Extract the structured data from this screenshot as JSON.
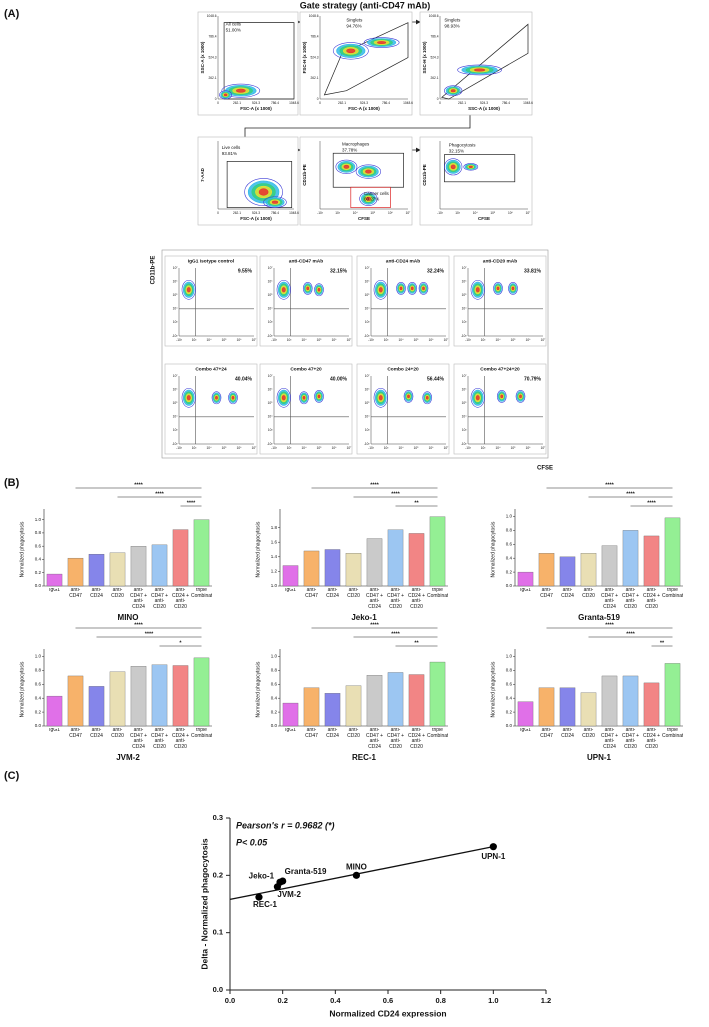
{
  "panel_labels": [
    "(A)",
    "(B)",
    "(C)"
  ],
  "gate_strategy": {
    "title": "Gate strategy (anti-CD47 mAb)",
    "linear_ticks": [
      "0",
      "262.1",
      "524.3",
      "786.4",
      "1048.6"
    ],
    "log_ticks": [
      "-10³",
      "10³",
      "10⁴",
      "10⁵",
      "10⁶",
      "10⁷"
    ],
    "plots": [
      {
        "xlabel": "FSC-A (x 1000)",
        "ylabel": "SSC-A (x 1000)",
        "gate": "All cells",
        "percent": "51.00%"
      },
      {
        "xlabel": "FSC-A (x 1000)",
        "ylabel": "FSC-H (x 1000)",
        "gate": "Singlets",
        "percent": "94.76%"
      },
      {
        "xlabel": "SSC-A (x 1000)",
        "ylabel": "SSC-H (x 1000)",
        "gate": "Singlets",
        "percent": "98.93%"
      },
      {
        "xlabel": "FSC-A (x 1000)",
        "ylabel": "7-AAD",
        "gate": "Live cells",
        "percent": "93.81%"
      },
      {
        "xlabel": "CFSE",
        "ylabel": "CD11b-PE",
        "gate": "Macrophages",
        "percent": "37.78%",
        "gate2": "Cancer cells",
        "percent2": "60.27%"
      },
      {
        "xlabel": "CFSE",
        "ylabel": "CD11b-PE",
        "gate": "Phagocytosis",
        "percent": "32.15%"
      }
    ]
  },
  "flow_grid": {
    "ylabel": "CD11b-PE",
    "xlabel": "CFSE",
    "plots": [
      {
        "title": "IgG1 isotype control",
        "percent": "9.55%"
      },
      {
        "title": "anti-CD47 mAb",
        "percent": "32.15%"
      },
      {
        "title": "anti-CD24 mAb",
        "percent": "32.24%"
      },
      {
        "title": "anti-CD20 mAb",
        "percent": "33.81%"
      },
      {
        "title": "Combo 47+24",
        "percent": "40.04%"
      },
      {
        "title": "Combo 47+20",
        "percent": "40.00%"
      },
      {
        "title": "Combo 24+20",
        "percent": "56.44%"
      },
      {
        "title": "Combo 47+24+20",
        "percent": "70.79%"
      }
    ]
  },
  "chart_data": [
    {
      "type": "bar",
      "title": "MINO",
      "ylabel": "Normalized phagocytosis",
      "categories": [
        "IgG1",
        "anti-CD47",
        "anti-CD24",
        "anti-CD20",
        "anti-CD47 + anti-CD24",
        "anti-CD47 + anti-CD20",
        "anti-CD24 + anti-CD20",
        "triple Combination"
      ],
      "colors": [
        "#e070e8",
        "#f7b26a",
        "#8585ea",
        "#e9dfb4",
        "#cacaca",
        "#9cc6f2",
        "#f28585",
        "#94ef94"
      ],
      "values": [
        0.18,
        0.42,
        0.48,
        0.5,
        0.6,
        0.62,
        0.85,
        1.0
      ],
      "ylim": [
        0,
        1.1
      ],
      "yticks": [
        {
          "value": 0,
          "label": "0.0"
        },
        {
          "value": 0.2,
          "label": "0.2"
        },
        {
          "value": 0.4,
          "label": "0.4"
        },
        {
          "value": 0.6,
          "label": "0.6"
        },
        {
          "value": 0.8,
          "label": "0.8"
        },
        {
          "value": 1,
          "label": "1.0"
        }
      ],
      "significance": [
        {
          "from": "anti-CD47",
          "to": "triple Combination",
          "label": "****"
        },
        {
          "from": "anti-CD20",
          "to": "triple Combination",
          "label": "****"
        },
        {
          "from": "anti-CD24 + anti-CD20",
          "to": "triple Combination",
          "label": "****"
        }
      ]
    },
    {
      "type": "bar",
      "title": "Jeko-1",
      "ylabel": "Normalized phagocytosis",
      "categories": [
        "IgG1",
        "anti-CD47",
        "anti-CD24",
        "anti-CD20",
        "anti-CD47 + anti-CD24",
        "anti-CD47 + anti-CD20",
        "anti-CD24 + anti-CD20",
        "triple Combination"
      ],
      "colors": [
        "#e070e8",
        "#f7b26a",
        "#8585ea",
        "#e9dfb4",
        "#cacaca",
        "#9cc6f2",
        "#f28585",
        "#94ef94"
      ],
      "values": [
        1.28,
        1.48,
        1.5,
        1.45,
        1.65,
        1.77,
        1.72,
        1.95
      ],
      "ylim": [
        1.0,
        2.0
      ],
      "yticks": [
        {
          "value": 1,
          "label": "1.0"
        },
        {
          "value": 1.2,
          "label": "1.2"
        },
        {
          "value": 1.4,
          "label": "1.4"
        },
        {
          "value": 1.6,
          "label": "1.6"
        },
        {
          "value": 1.8,
          "label": "1.8"
        }
      ],
      "significance": [
        {
          "from": "anti-CD47",
          "to": "triple Combination",
          "label": "****"
        },
        {
          "from": "anti-CD20",
          "to": "triple Combination",
          "label": "****"
        },
        {
          "from": "anti-CD47 + anti-CD20",
          "to": "triple Combination",
          "label": "**"
        }
      ]
    },
    {
      "type": "bar",
      "title": "Granta-519",
      "ylabel": "Normalized phagocytosis",
      "categories": [
        "IgG1",
        "anti-CD47",
        "anti-CD24",
        "anti-CD20",
        "anti-CD47 + anti-CD24",
        "anti-CD47 + anti-CD20",
        "anti-CD24 + anti-CD20",
        "triple Combination"
      ],
      "colors": [
        "#e070e8",
        "#f7b26a",
        "#8585ea",
        "#e9dfb4",
        "#cacaca",
        "#9cc6f2",
        "#f28585",
        "#94ef94"
      ],
      "values": [
        0.2,
        0.47,
        0.42,
        0.47,
        0.58,
        0.8,
        0.72,
        0.98
      ],
      "ylim": [
        0,
        1.05
      ],
      "yticks": [
        {
          "value": 0,
          "label": "0.0"
        },
        {
          "value": 0.2,
          "label": "0.2"
        },
        {
          "value": 0.4,
          "label": "0.4"
        },
        {
          "value": 0.6,
          "label": "0.6"
        },
        {
          "value": 0.8,
          "label": "0.8"
        },
        {
          "value": 1,
          "label": "1.0"
        }
      ],
      "significance": [
        {
          "from": "anti-CD47",
          "to": "triple Combination",
          "label": "****"
        },
        {
          "from": "anti-CD20",
          "to": "triple Combination",
          "label": "****"
        },
        {
          "from": "anti-CD47 + anti-CD20",
          "to": "triple Combination",
          "label": "****"
        }
      ]
    },
    {
      "type": "bar",
      "title": "JVM-2",
      "ylabel": "Normalized phagocytosis",
      "categories": [
        "IgG1",
        "anti-CD47",
        "anti-CD24",
        "anti-CD20",
        "anti-CD47 + anti-CD24",
        "anti-CD47 + anti-CD20",
        "anti-CD24 + anti-CD20",
        "triple Combination"
      ],
      "colors": [
        "#e070e8",
        "#f7b26a",
        "#8585ea",
        "#e9dfb4",
        "#cacaca",
        "#9cc6f2",
        "#f28585",
        "#94ef94"
      ],
      "values": [
        0.43,
        0.72,
        0.57,
        0.78,
        0.86,
        0.88,
        0.87,
        0.98
      ],
      "ylim": [
        0,
        1.05
      ],
      "yticks": [
        {
          "value": 0,
          "label": "0.0"
        },
        {
          "value": 0.2,
          "label": "0.2"
        },
        {
          "value": 0.4,
          "label": "0.4"
        },
        {
          "value": 0.6,
          "label": "0.6"
        },
        {
          "value": 0.8,
          "label": "0.8"
        },
        {
          "value": 1,
          "label": "1.0"
        }
      ],
      "significance": [
        {
          "from": "anti-CD47",
          "to": "triple Combination",
          "label": "****"
        },
        {
          "from": "anti-CD24",
          "to": "triple Combination",
          "label": "****"
        },
        {
          "from": "anti-CD47 + anti-CD20",
          "to": "triple Combination",
          "label": "*"
        }
      ]
    },
    {
      "type": "bar",
      "title": "REC-1",
      "ylabel": "Normalized phagocytosis",
      "categories": [
        "IgG1",
        "anti-CD47",
        "anti-CD24",
        "anti-CD20",
        "anti-CD47 + anti-CD24",
        "anti-CD47 + anti-CD20",
        "anti-CD24 + anti-CD20",
        "triple Combination"
      ],
      "colors": [
        "#e070e8",
        "#f7b26a",
        "#8585ea",
        "#e9dfb4",
        "#cacaca",
        "#9cc6f2",
        "#f28585",
        "#94ef94"
      ],
      "values": [
        0.33,
        0.55,
        0.47,
        0.58,
        0.73,
        0.77,
        0.74,
        0.92
      ],
      "ylim": [
        0,
        1.05
      ],
      "yticks": [
        {
          "value": 0,
          "label": "0.0"
        },
        {
          "value": 0.2,
          "label": "0.2"
        },
        {
          "value": 0.4,
          "label": "0.4"
        },
        {
          "value": 0.6,
          "label": "0.6"
        },
        {
          "value": 0.8,
          "label": "0.8"
        },
        {
          "value": 1,
          "label": "1.0"
        }
      ],
      "significance": [
        {
          "from": "anti-CD47",
          "to": "triple Combination",
          "label": "****"
        },
        {
          "from": "anti-CD20",
          "to": "triple Combination",
          "label": "****"
        },
        {
          "from": "anti-CD47 + anti-CD20",
          "to": "triple Combination",
          "label": "**"
        }
      ]
    },
    {
      "type": "bar",
      "title": "UPN-1",
      "ylabel": "Normalized phagocytosis",
      "categories": [
        "IgG1",
        "anti-CD47",
        "anti-CD24",
        "anti-CD20",
        "anti-CD47 + anti-CD24",
        "anti-CD47 + anti-CD20",
        "anti-CD24 + anti-CD20",
        "triple Combination"
      ],
      "colors": [
        "#e070e8",
        "#f7b26a",
        "#8585ea",
        "#e9dfb4",
        "#cacaca",
        "#9cc6f2",
        "#f28585",
        "#94ef94"
      ],
      "values": [
        0.35,
        0.55,
        0.55,
        0.48,
        0.72,
        0.72,
        0.62,
        0.9
      ],
      "ylim": [
        0,
        1.05
      ],
      "yticks": [
        {
          "value": 0,
          "label": "0.0"
        },
        {
          "value": 0.2,
          "label": "0.2"
        },
        {
          "value": 0.4,
          "label": "0.4"
        },
        {
          "value": 0.6,
          "label": "0.6"
        },
        {
          "value": 0.8,
          "label": "0.8"
        },
        {
          "value": 1,
          "label": "1.0"
        }
      ],
      "significance": [
        {
          "from": "anti-CD47",
          "to": "triple Combination",
          "label": "****"
        },
        {
          "from": "anti-CD20",
          "to": "triple Combination",
          "label": "****"
        },
        {
          "from": "anti-CD24 + anti-CD20",
          "to": "triple Combination",
          "label": "**"
        }
      ]
    },
    {
      "type": "scatter",
      "xlabel": "Normalized CD24 expression",
      "ylabel": "Delta - Normalized phagocytosis",
      "annotations": [
        "Pearson's r = 0.9682 (*)",
        "P< 0.05"
      ],
      "labels": [
        "REC-1",
        "JVM-2",
        "Jeko-1",
        "Granta-519",
        "MINO",
        "UPN-1"
      ],
      "x": [
        0.11,
        0.18,
        0.19,
        0.2,
        0.48,
        1.0
      ],
      "y": [
        0.162,
        0.18,
        0.188,
        0.19,
        0.2,
        0.25
      ],
      "color": "#000000",
      "fit": {
        "x": [
          0,
          1
        ],
        "y": [
          0.158,
          0.25
        ]
      },
      "xlim": [
        0,
        1.2
      ],
      "ylim": [
        0,
        0.3
      ],
      "xticks": [
        {
          "value": 0,
          "label": "0.0"
        },
        {
          "value": 0.2,
          "label": "0.2"
        },
        {
          "value": 0.4,
          "label": "0.4"
        },
        {
          "value": 0.6,
          "label": "0.6"
        },
        {
          "value": 0.8,
          "label": "0.8"
        },
        {
          "value": 1,
          "label": "1.0"
        },
        {
          "value": 1.2,
          "label": "1.2"
        }
      ],
      "yticks": [
        {
          "value": 0,
          "label": "0.0"
        },
        {
          "value": 0.1,
          "label": "0.1"
        },
        {
          "value": 0.2,
          "label": "0.2"
        },
        {
          "value": 0.3,
          "label": "0.3"
        }
      ]
    }
  ]
}
